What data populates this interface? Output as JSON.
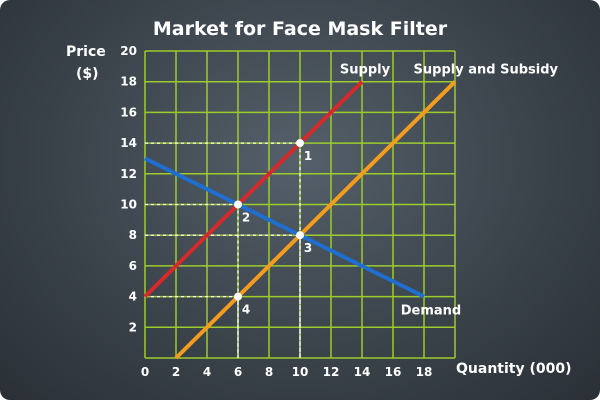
{
  "chart_data": {
    "type": "line",
    "title": "Market for Face Mask Filter",
    "ylabel_lines": [
      "Price",
      "($)"
    ],
    "xlabel": "Quantity (000)",
    "xlim": [
      0,
      20
    ],
    "ylim": [
      0,
      20
    ],
    "xticks": [
      0,
      2,
      4,
      6,
      8,
      10,
      12,
      14,
      16,
      18
    ],
    "yticks": [
      2,
      4,
      6,
      8,
      10,
      12,
      14,
      16,
      18,
      20
    ],
    "grid": true,
    "series": [
      {
        "name": "Supply",
        "color": "#d42a2a",
        "points": [
          [
            0,
            4
          ],
          [
            14,
            18
          ]
        ]
      },
      {
        "name": "Supply and Subsidy",
        "color": "#f39c1e",
        "points": [
          [
            2,
            0
          ],
          [
            20,
            18
          ]
        ]
      },
      {
        "name": "Demand",
        "color": "#1e6fd0",
        "points": [
          [
            0,
            13
          ],
          [
            18,
            4
          ]
        ]
      }
    ],
    "points": [
      {
        "label": "1",
        "x": 10,
        "y": 14
      },
      {
        "label": "2",
        "x": 6,
        "y": 10
      },
      {
        "label": "3",
        "x": 10,
        "y": 8
      },
      {
        "label": "4",
        "x": 6,
        "y": 4
      }
    ],
    "colors": {
      "background": "#3b434b",
      "grid": "#9ccc2c",
      "text": "#ffffff"
    }
  }
}
